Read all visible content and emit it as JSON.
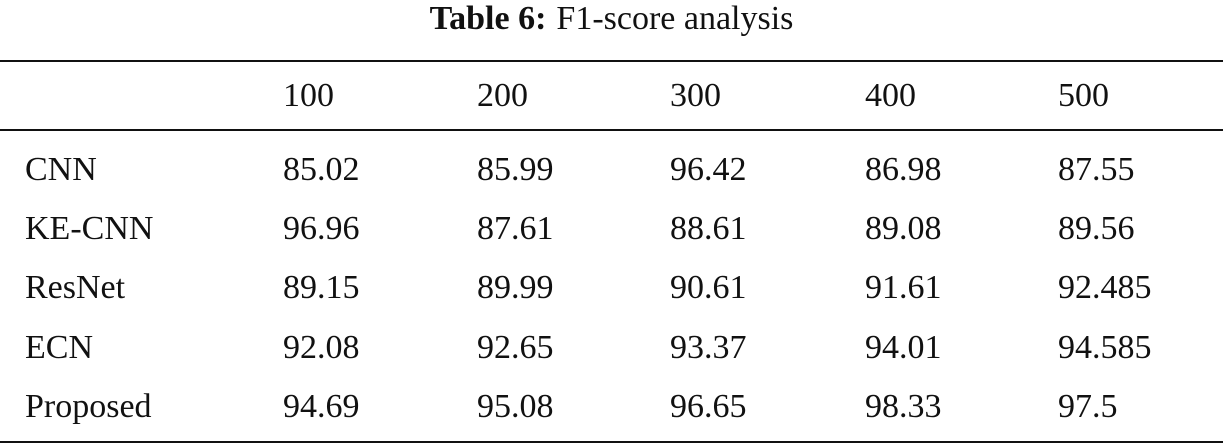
{
  "title": {
    "label": "Table 6:",
    "text": "F1-score analysis"
  },
  "table": {
    "header": [
      "100",
      "200",
      "300",
      "400",
      "500"
    ],
    "rows": [
      [
        "CNN",
        "85.02",
        "85.99",
        "96.42",
        "86.98",
        "87.55"
      ],
      [
        "KE-CNN",
        "96.96",
        "87.61",
        "88.61",
        "89.08",
        "89.56"
      ],
      [
        "ResNet",
        "89.15",
        "89.99",
        "90.61",
        "91.61",
        "92.485"
      ],
      [
        "ECN",
        "92.08",
        "92.65",
        "93.37",
        "94.01",
        "94.585"
      ],
      [
        "Proposed",
        "94.69",
        "95.08",
        "96.65",
        "98.33",
        "97.5"
      ]
    ]
  }
}
